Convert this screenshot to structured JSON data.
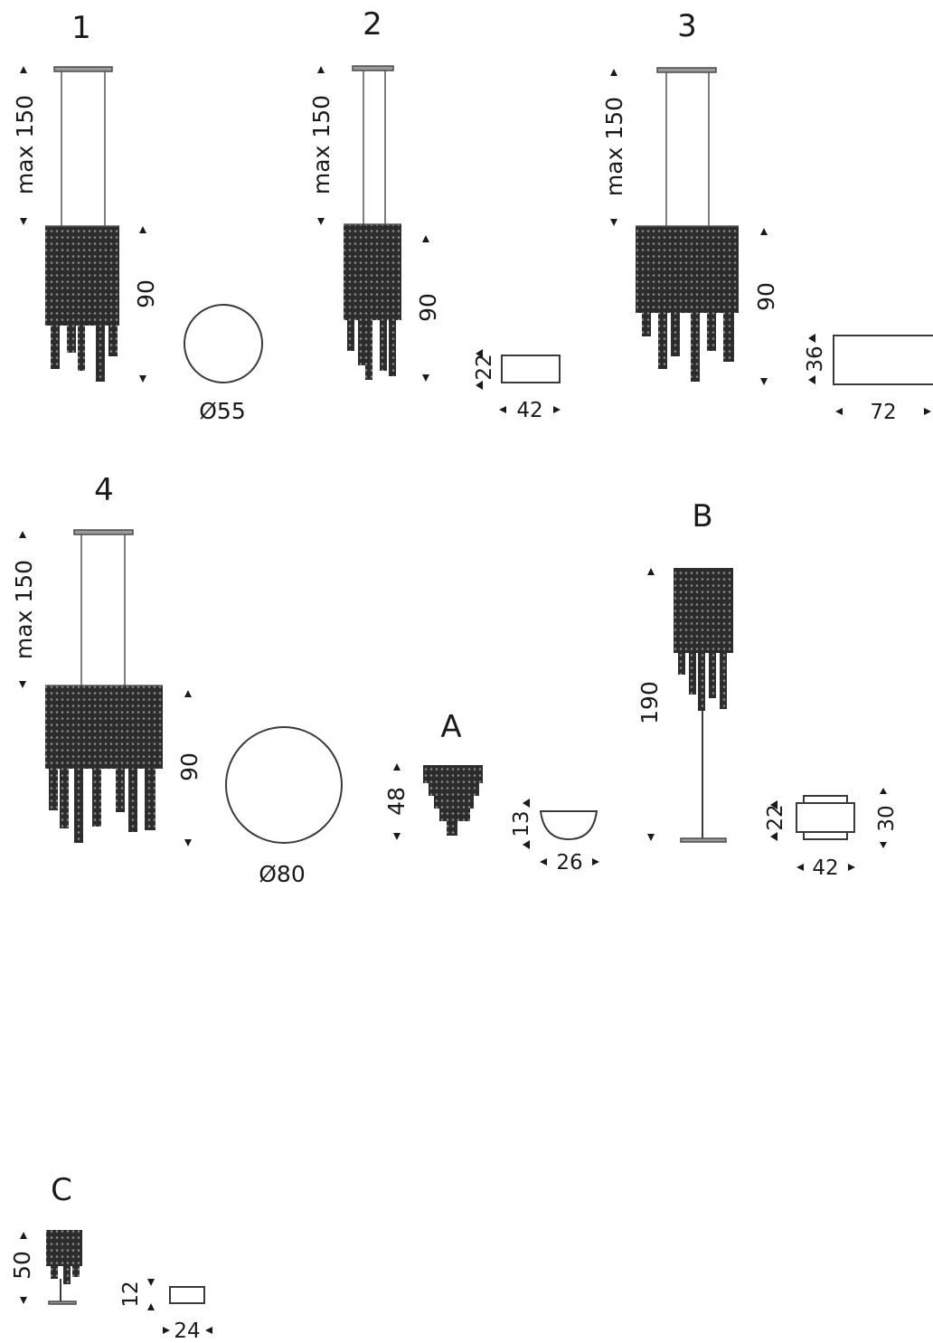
{
  "models": [
    {
      "id": "1",
      "label": "1",
      "height_label": "max 150",
      "body_label": "90",
      "footprint_label": "Ø55"
    },
    {
      "id": "2",
      "label": "2",
      "height_label": "max 150",
      "body_label": "90",
      "footprint_w": "42",
      "footprint_d": "22"
    },
    {
      "id": "3",
      "label": "3",
      "height_label": "max 150",
      "body_label": "90",
      "footprint_w": "72",
      "footprint_d": "36"
    },
    {
      "id": "4",
      "label": "4",
      "height_label": "max 150",
      "body_label": "90",
      "footprint_label": "Ø80"
    },
    {
      "id": "A",
      "label": "A",
      "height_label": "48",
      "footprint_w": "26",
      "footprint_d": "13"
    },
    {
      "id": "B",
      "label": "B",
      "height_label": "190",
      "footprint_w": "42",
      "footprint_d1": "22",
      "footprint_d2": "30"
    },
    {
      "id": "C",
      "label": "C",
      "height_label": "50",
      "footprint_w": "24",
      "footprint_d": "12"
    }
  ]
}
